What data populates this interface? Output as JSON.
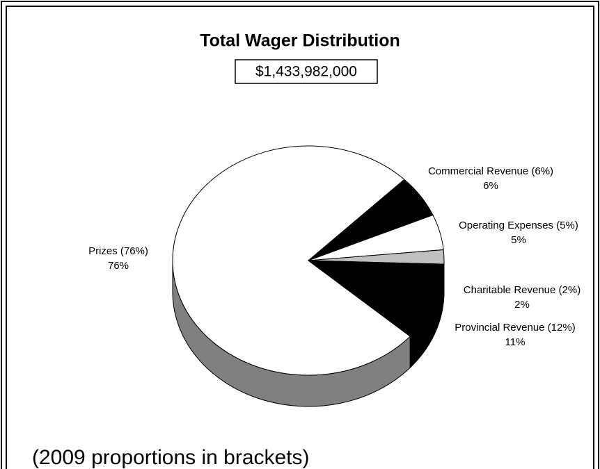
{
  "chart_data": {
    "type": "pie3d",
    "title": "Total Wager Distribution",
    "subtitle": "$1,433,982,000",
    "annotation": "(2009 proportions in brackets)",
    "categories": [
      "Prizes (76%)",
      "Commercial Revenue (6%)",
      "Operating Expenses (5%)",
      "Charitable Revenue (2%)",
      "Provincial Revenue (12%)"
    ],
    "values": [
      76,
      6,
      5,
      2,
      11
    ],
    "value_labels": [
      "76%",
      "6%",
      "5%",
      "2%",
      "11%"
    ],
    "colors": [
      "#ffffff",
      "#000000",
      "#ffffff",
      "#c0c0c0",
      "#000000"
    ]
  }
}
